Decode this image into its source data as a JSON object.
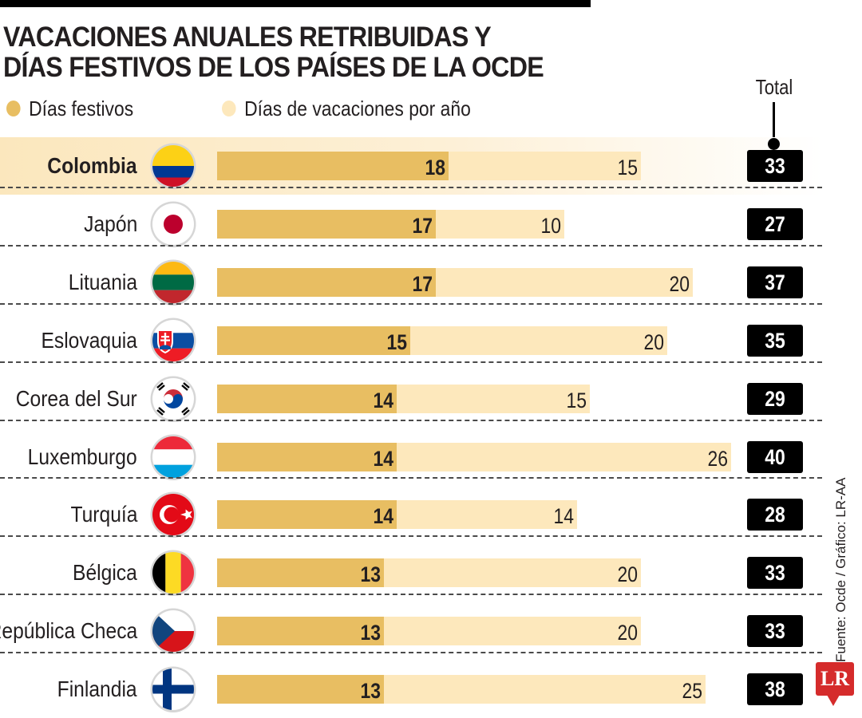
{
  "title_line1": "VACACIONES ANUALES RETRIBUIDAS Y",
  "title_line2": "DÍAS FESTIVOS DE LOS PAÍSES DE LA OCDE",
  "legend": {
    "holidays": "Días festivos",
    "vacation": "Días de vacaciones por año"
  },
  "total_label": "Total",
  "source": "Fuente: Ocde / Gráfico: LR-AA",
  "logo_text": "LR",
  "colors": {
    "holidays": "#e8be62",
    "vacation": "#fde8bc",
    "highlight": "#fbe7bd",
    "total_bg": "#000000",
    "logo": "#d52b2b"
  },
  "chart_data": {
    "type": "bar",
    "orientation": "horizontal",
    "stacked": true,
    "categories": [
      "Colombia",
      "Japón",
      "Lituania",
      "Eslovaquia",
      "Corea del Sur",
      "Luxemburgo",
      "Turquía",
      "Bélgica",
      "República Checa",
      "Finlandia"
    ],
    "series": [
      {
        "name": "Días festivos",
        "values": [
          18,
          17,
          17,
          15,
          14,
          14,
          14,
          13,
          13,
          13
        ]
      },
      {
        "name": "Días de vacaciones por año",
        "values": [
          15,
          10,
          20,
          20,
          15,
          26,
          14,
          20,
          20,
          25
        ]
      }
    ],
    "totals": [
      33,
      27,
      37,
      35,
      29,
      40,
      28,
      33,
      33,
      38
    ],
    "highlighted": "Colombia",
    "flags": [
      "colombia-flag-icon",
      "japan-flag-icon",
      "lithuania-flag-icon",
      "slovakia-flag-icon",
      "south-korea-flag-icon",
      "luxembourg-flag-icon",
      "turkey-flag-icon",
      "belgium-flag-icon",
      "czech-republic-flag-icon",
      "finland-flag-icon"
    ],
    "xlim": [
      0,
      40
    ],
    "grid": false,
    "legend_position": "top-left"
  }
}
